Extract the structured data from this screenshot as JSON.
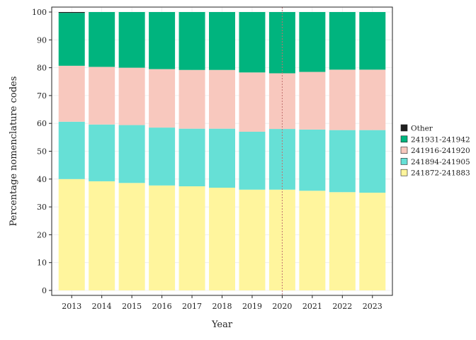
{
  "chart_data": {
    "type": "bar",
    "stacked": true,
    "categories": [
      "2013",
      "2014",
      "2015",
      "2016",
      "2017",
      "2018",
      "2019",
      "2020",
      "2021",
      "2022",
      "2023"
    ],
    "series": [
      {
        "name": "241872-241883",
        "color": "#FFF59D",
        "values": [
          40.0,
          39.2,
          38.6,
          37.7,
          37.4,
          36.9,
          36.2,
          36.2,
          35.8,
          35.3,
          35.1
        ]
      },
      {
        "name": "241894-241905",
        "color": "#66E0D6",
        "values": [
          20.6,
          20.4,
          20.8,
          20.8,
          20.7,
          21.2,
          20.8,
          21.8,
          22.0,
          22.3,
          22.5
        ]
      },
      {
        "name": "241916-241920",
        "color": "#F8C8BE",
        "values": [
          20.1,
          20.7,
          20.6,
          21.0,
          21.1,
          21.1,
          21.3,
          20.0,
          20.7,
          21.7,
          21.7
        ]
      },
      {
        "name": "241931-241942",
        "color": "#00B47E",
        "values": [
          19.0,
          19.7,
          20.0,
          20.5,
          20.8,
          20.8,
          21.7,
          22.0,
          21.5,
          20.7,
          20.7
        ]
      },
      {
        "name": "Other",
        "color": "#1F1F1F",
        "values": [
          0.3,
          0.0,
          0.0,
          0.0,
          0.0,
          0.0,
          0.0,
          0.0,
          0.0,
          0.0,
          0.0
        ]
      }
    ],
    "legend_order": [
      "Other",
      "241931-241942",
      "241916-241920",
      "241894-241905",
      "241872-241883"
    ],
    "xlabel": "Year",
    "ylabel": "Percentage nomenclature codes",
    "ylim": [
      0,
      100
    ],
    "yticks": [
      0,
      10,
      20,
      30,
      40,
      50,
      60,
      70,
      80,
      90,
      100
    ],
    "grid": true,
    "legend_position": "right",
    "reference_line": {
      "x": "2020",
      "style": "dotted",
      "color": "#C07070"
    }
  }
}
